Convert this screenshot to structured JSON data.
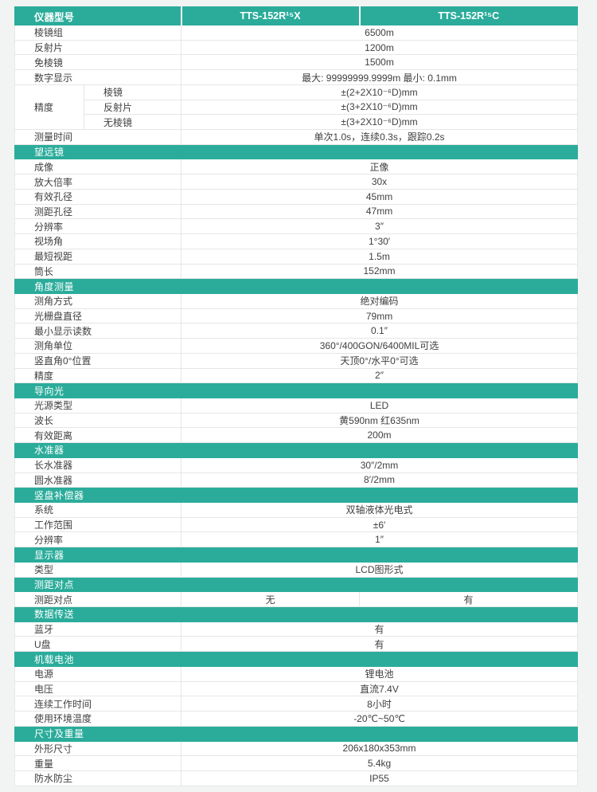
{
  "page": {
    "accent_color": "#2bac9b",
    "background_color": "#f2f3f3",
    "row_border_color": "#e6e6e6"
  },
  "table": {
    "header": {
      "label": "仪器型号",
      "models": [
        "TTS-152R¹⁵X",
        "TTS-152R¹⁵C"
      ]
    },
    "rows": [
      {
        "type": "row",
        "label": "棱镜组",
        "value": "6500m"
      },
      {
        "type": "row",
        "label": "反射片",
        "value": "1200m"
      },
      {
        "type": "row",
        "label": "免棱镜",
        "value": "1500m"
      },
      {
        "type": "row",
        "label": "数字显示",
        "value": "最大: 99999999.9999m 最小: 0.1mm"
      },
      {
        "type": "group",
        "label": "精度",
        "subrows": [
          {
            "label": "棱镜",
            "value": "±(2+2X10⁻⁶D)mm"
          },
          {
            "label": "反射片",
            "value": "±(3+2X10⁻⁶D)mm"
          },
          {
            "label": "无棱镜",
            "value": "±(3+2X10⁻⁶D)mm"
          }
        ]
      },
      {
        "type": "row",
        "label": "测量时间",
        "value": "单次1.0s，连续0.3s，跟踪0.2s"
      },
      {
        "type": "section",
        "label": "望远镜"
      },
      {
        "type": "row",
        "label": "成像",
        "value": "正像"
      },
      {
        "type": "row",
        "label": "放大倍率",
        "value": "30x"
      },
      {
        "type": "row",
        "label": "有效孔径",
        "value": "45mm"
      },
      {
        "type": "row",
        "label": "测距孔径",
        "value": "47mm"
      },
      {
        "type": "row",
        "label": "分辨率",
        "value": "3″"
      },
      {
        "type": "row",
        "label": "视场角",
        "value": "1°30′"
      },
      {
        "type": "row",
        "label": "最短视距",
        "value": "1.5m"
      },
      {
        "type": "row",
        "label": "筒长",
        "value": "152mm"
      },
      {
        "type": "section",
        "label": "角度测量"
      },
      {
        "type": "row",
        "label": "测角方式",
        "value": "绝对编码"
      },
      {
        "type": "row",
        "label": "光栅盘直径",
        "value": "79mm"
      },
      {
        "type": "row",
        "label": "最小显示读数",
        "value": "0.1″"
      },
      {
        "type": "row",
        "label": "测角单位",
        "value": "360°/400GON/6400MIL可选"
      },
      {
        "type": "row",
        "label": "竖直角0°位置",
        "value": "天顶0°/水平0°可选"
      },
      {
        "type": "row",
        "label": "精度",
        "value": "2″"
      },
      {
        "type": "section",
        "label": "导向光"
      },
      {
        "type": "row",
        "label": "光源类型",
        "value": "LED"
      },
      {
        "type": "row",
        "label": "波长",
        "value": "黄590nm 红635nm"
      },
      {
        "type": "row",
        "label": "有效距离",
        "value": "200m"
      },
      {
        "type": "section",
        "label": "水准器"
      },
      {
        "type": "row",
        "label": "长水准器",
        "value": "30″/2mm"
      },
      {
        "type": "row",
        "label": "圆水准器",
        "value": "8′/2mm"
      },
      {
        "type": "section",
        "label": "竖盘补偿器"
      },
      {
        "type": "row",
        "label": "系统",
        "value": "双轴液体光电式"
      },
      {
        "type": "row",
        "label": "工作范围",
        "value": "±6′"
      },
      {
        "type": "row",
        "label": "分辨率",
        "value": "1″"
      },
      {
        "type": "section",
        "label": "显示器"
      },
      {
        "type": "row",
        "label": "类型",
        "value": "LCD图形式"
      },
      {
        "type": "section",
        "label": "测距对点"
      },
      {
        "type": "split",
        "label": "测距对点",
        "values": [
          "无",
          "有"
        ]
      },
      {
        "type": "section",
        "label": "数据传送"
      },
      {
        "type": "row",
        "label": "蓝牙",
        "value": "有"
      },
      {
        "type": "row",
        "label": "U盘",
        "value": "有"
      },
      {
        "type": "section",
        "label": "机载电池"
      },
      {
        "type": "row",
        "label": "电源",
        "value": "锂电池"
      },
      {
        "type": "row",
        "label": "电压",
        "value": "直流7.4V"
      },
      {
        "type": "row",
        "label": "连续工作时间",
        "value": "8小时"
      },
      {
        "type": "row",
        "label": "使用环境温度",
        "value": "-20℃~50℃"
      },
      {
        "type": "section",
        "label": "尺寸及重量"
      },
      {
        "type": "row",
        "label": "外形尺寸",
        "value": "206x180x353mm"
      },
      {
        "type": "row",
        "label": "重量",
        "value": "5.4kg"
      },
      {
        "type": "row",
        "label": "防水防尘",
        "value": "IP55"
      }
    ]
  }
}
